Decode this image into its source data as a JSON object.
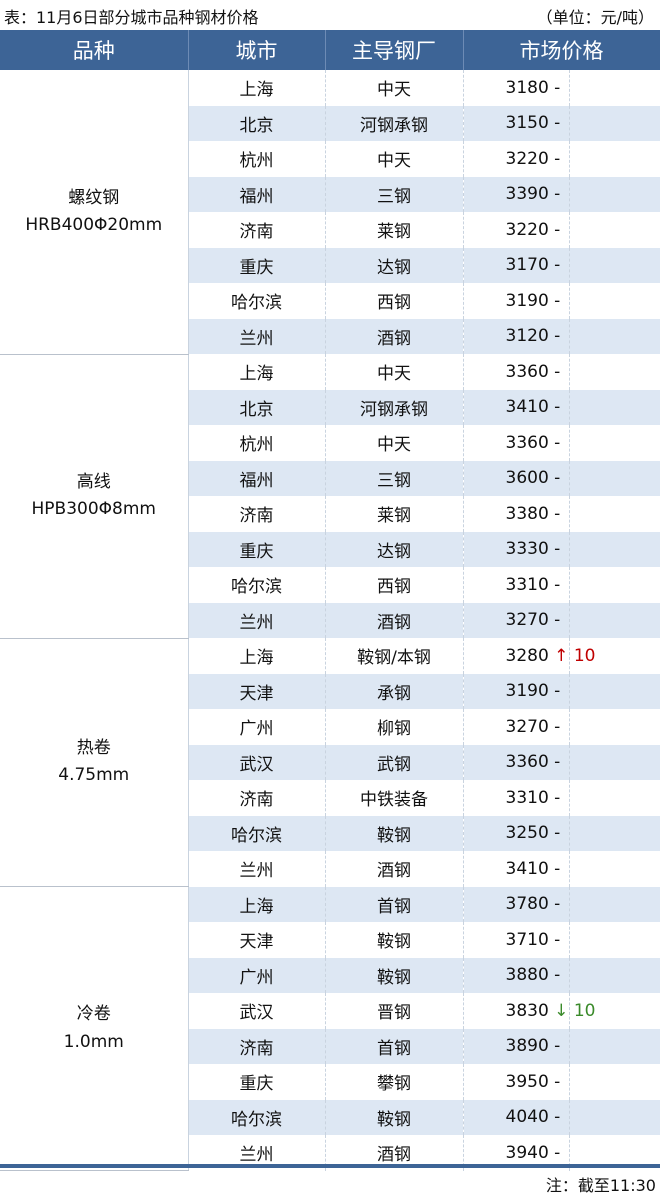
{
  "title": "表：11月6日部分城市品种钢材价格",
  "unit": "（单位：元/吨）",
  "headers": [
    "品种",
    "城市",
    "主导钢厂",
    "市场价格"
  ],
  "groups": [
    {
      "name": "螺纹钢",
      "spec": "HRB400Φ20mm",
      "rows": [
        {
          "city": "上海",
          "mill": "中天",
          "price": "3180",
          "change": "-"
        },
        {
          "city": "北京",
          "mill": "河钢承钢",
          "price": "3150",
          "change": "-"
        },
        {
          "city": "杭州",
          "mill": "中天",
          "price": "3220",
          "change": "-"
        },
        {
          "city": "福州",
          "mill": "三钢",
          "price": "3390",
          "change": "-"
        },
        {
          "city": "济南",
          "mill": "莱钢",
          "price": "3220",
          "change": "-"
        },
        {
          "city": "重庆",
          "mill": "达钢",
          "price": "3170",
          "change": "-"
        },
        {
          "city": "哈尔滨",
          "mill": "西钢",
          "price": "3190",
          "change": "-"
        },
        {
          "city": "兰州",
          "mill": "酒钢",
          "price": "3120",
          "change": "-"
        }
      ]
    },
    {
      "name": "高线",
      "spec": "HPB300Φ8mm",
      "rows": [
        {
          "city": "上海",
          "mill": "中天",
          "price": "3360",
          "change": "-"
        },
        {
          "city": "北京",
          "mill": "河钢承钢",
          "price": "3410",
          "change": "-"
        },
        {
          "city": "杭州",
          "mill": "中天",
          "price": "3360",
          "change": "-"
        },
        {
          "city": "福州",
          "mill": "三钢",
          "price": "3600",
          "change": "-"
        },
        {
          "city": "济南",
          "mill": "莱钢",
          "price": "3380",
          "change": "-"
        },
        {
          "city": "重庆",
          "mill": "达钢",
          "price": "3330",
          "change": "-"
        },
        {
          "city": "哈尔滨",
          "mill": "西钢",
          "price": "3310",
          "change": "-"
        },
        {
          "city": "兰州",
          "mill": "酒钢",
          "price": "3270",
          "change": "-"
        }
      ]
    },
    {
      "name": "热卷",
      "spec": "4.75mm",
      "rows": [
        {
          "city": "上海",
          "mill": "鞍钢/本钢",
          "price": "3280",
          "change": "↑ 10",
          "dir": "up"
        },
        {
          "city": "天津",
          "mill": "承钢",
          "price": "3190",
          "change": "-"
        },
        {
          "city": "广州",
          "mill": "柳钢",
          "price": "3270",
          "change": "-"
        },
        {
          "city": "武汉",
          "mill": "武钢",
          "price": "3360",
          "change": "-"
        },
        {
          "city": "济南",
          "mill": "中铁装备",
          "price": "3310",
          "change": "-"
        },
        {
          "city": "哈尔滨",
          "mill": "鞍钢",
          "price": "3250",
          "change": "-"
        },
        {
          "city": "兰州",
          "mill": "酒钢",
          "price": "3410",
          "change": "-"
        }
      ]
    },
    {
      "name": "冷卷",
      "spec": "1.0mm",
      "rows": [
        {
          "city": "上海",
          "mill": "首钢",
          "price": "3780",
          "change": "-"
        },
        {
          "city": "天津",
          "mill": "鞍钢",
          "price": "3710",
          "change": "-"
        },
        {
          "city": "广州",
          "mill": "鞍钢",
          "price": "3880",
          "change": "-"
        },
        {
          "city": "武汉",
          "mill": "晋钢",
          "price": "3830",
          "change": "↓ 10",
          "dir": "down"
        },
        {
          "city": "济南",
          "mill": "首钢",
          "price": "3890",
          "change": "-"
        },
        {
          "city": "重庆",
          "mill": "攀钢",
          "price": "3950",
          "change": "-"
        },
        {
          "city": "哈尔滨",
          "mill": "鞍钢",
          "price": "4040",
          "change": "-"
        },
        {
          "city": "兰州",
          "mill": "酒钢",
          "price": "3940",
          "change": "-"
        }
      ]
    }
  ],
  "note": "注：截至11:30",
  "colors": {
    "header": "#3d6496",
    "stripe": "#dde7f3",
    "up": "#c00000",
    "down": "#3a8a2a"
  }
}
